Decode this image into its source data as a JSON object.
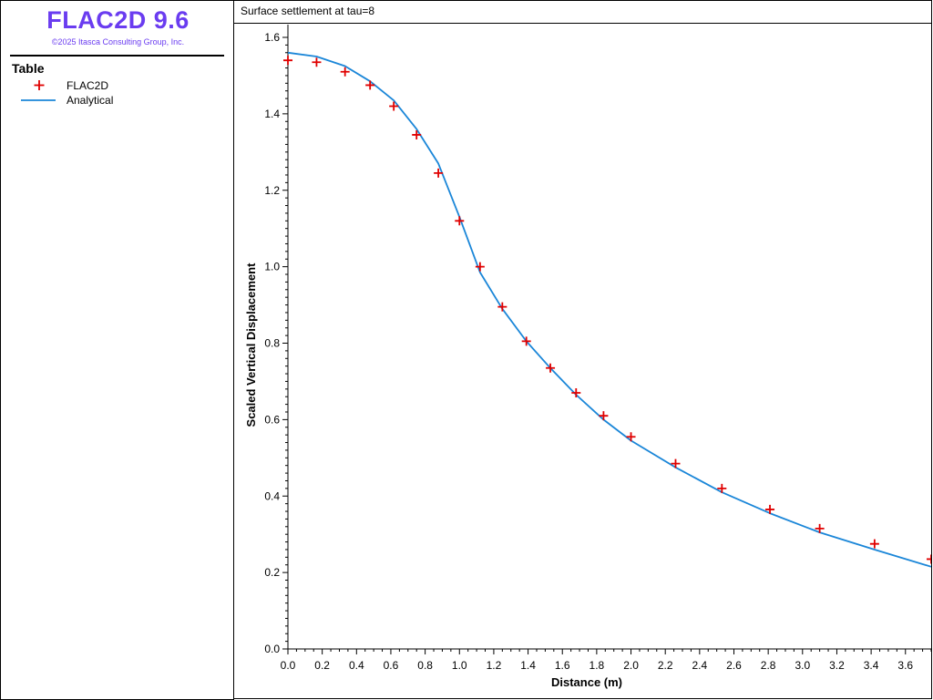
{
  "app": {
    "title": "FLAC2D 9.6",
    "copyright": "©2025 Itasca Consulting Group, Inc."
  },
  "legend": {
    "title": "Table",
    "items": [
      {
        "label": "FLAC2D",
        "symbol": "plus",
        "color": "#e00000"
      },
      {
        "label": "Analytical",
        "symbol": "line",
        "color": "#1a86d8"
      }
    ]
  },
  "chart_data": {
    "type": "line",
    "title": "Surface settlement at tau=8",
    "xlabel": "Distance (m)",
    "ylabel": "Scaled Vertical Displacement",
    "xlim": [
      0.0,
      3.75
    ],
    "ylim": [
      0.0,
      1.6
    ],
    "xticks": [
      "0.0",
      "0.2",
      "0.4",
      "0.6",
      "0.8",
      "1.0",
      "1.2",
      "1.4",
      "1.6",
      "1.8",
      "2.0",
      "2.2",
      "2.4",
      "2.6",
      "2.8",
      "3.0",
      "3.2",
      "3.4",
      "3.6"
    ],
    "yticks": [
      "0.0",
      "0.2",
      "0.4",
      "0.6",
      "0.8",
      "1.0",
      "1.2",
      "1.4",
      "1.6"
    ],
    "grid": false,
    "legend_position": "left-panel",
    "series": [
      {
        "name": "FLAC2D",
        "type": "scatter",
        "marker": "plus",
        "color": "#e00000",
        "x": [
          0.0,
          0.167,
          0.333,
          0.479,
          0.617,
          0.75,
          0.877,
          1.0,
          1.12,
          1.25,
          1.39,
          1.53,
          1.68,
          1.84,
          2.0,
          2.26,
          2.53,
          2.81,
          3.1,
          3.42,
          3.75
        ],
        "y": [
          1.54,
          1.535,
          1.51,
          1.475,
          1.42,
          1.345,
          1.245,
          1.12,
          1.0,
          0.895,
          0.805,
          0.735,
          0.67,
          0.61,
          0.555,
          0.485,
          0.42,
          0.365,
          0.315,
          0.275,
          0.235
        ]
      },
      {
        "name": "Analytical",
        "type": "line",
        "color": "#1a86d8",
        "x": [
          0.0,
          0.167,
          0.333,
          0.479,
          0.617,
          0.75,
          0.877,
          1.0,
          1.12,
          1.25,
          1.39,
          1.53,
          1.68,
          1.84,
          2.0,
          2.26,
          2.53,
          2.81,
          3.1,
          3.42,
          3.75
        ],
        "y": [
          1.56,
          1.55,
          1.525,
          1.485,
          1.435,
          1.36,
          1.27,
          1.13,
          0.985,
          0.89,
          0.805,
          0.735,
          0.665,
          0.6,
          0.545,
          0.475,
          0.41,
          0.355,
          0.305,
          0.26,
          0.215
        ]
      }
    ]
  }
}
